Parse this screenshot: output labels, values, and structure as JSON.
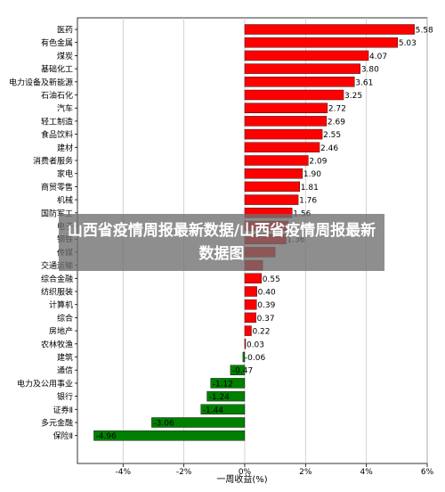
{
  "overlay_text": "山西省疫情周报最新数据/山西省疫情周报最新数据图",
  "chart_data": {
    "type": "bar",
    "orientation": "horizontal",
    "categories": [
      "医药",
      "有色金属",
      "煤炭",
      "基础化工",
      "电力设备及新能源",
      "石油石化",
      "汽车",
      "轻工制造",
      "食品饮料",
      "建材",
      "消费者服务",
      "家电",
      "商贸零售",
      "机械",
      "国防军工",
      "电子",
      "钢铁",
      "传媒",
      "交通运输",
      "综合金融",
      "纺织服装",
      "计算机",
      "综合",
      "房地产",
      "农林牧渔",
      "建筑",
      "通信",
      "电力及公用事业",
      "银行",
      "证券Ⅱ",
      "多元金融",
      "保险Ⅱ"
    ],
    "values": [
      5.58,
      5.03,
      4.07,
      3.8,
      3.61,
      3.25,
      2.72,
      2.69,
      2.55,
      2.46,
      2.09,
      1.9,
      1.81,
      1.76,
      1.56,
      1.43,
      1.36,
      1.0,
      0.59,
      0.55,
      0.4,
      0.39,
      0.37,
      0.22,
      0.03,
      -0.06,
      -0.47,
      -1.12,
      -1.24,
      -1.44,
      -3.06,
      -4.96
    ],
    "value_labels": [
      "5.58",
      "5.03",
      "4.07",
      "3.80",
      "3.61",
      "3.25",
      "2.72",
      "2.69",
      "2.55",
      "2.46",
      "2.09",
      "1.90",
      "1.81",
      "1.76",
      "1.56",
      "",
      "1.36",
      "",
      "",
      "0.55",
      "0.40",
      "0.39",
      "0.37",
      "0.22",
      "0.03",
      "-0.06",
      "-0.47",
      "-1.12",
      "-1.24",
      "-1.44",
      "-3.06",
      "-4.96"
    ],
    "xlabel": "一周收益(%)",
    "xlim": [
      -5.5,
      6.0
    ],
    "xticks": [
      -4,
      -2,
      0,
      2,
      4,
      6
    ],
    "xtick_labels": [
      "-4%",
      "-2%",
      "0%",
      "2%",
      "4%",
      "6%"
    ],
    "grid": "vertical",
    "colors": {
      "positive": "#ff0000",
      "negative": "#008000",
      "edge": "#000000"
    }
  }
}
